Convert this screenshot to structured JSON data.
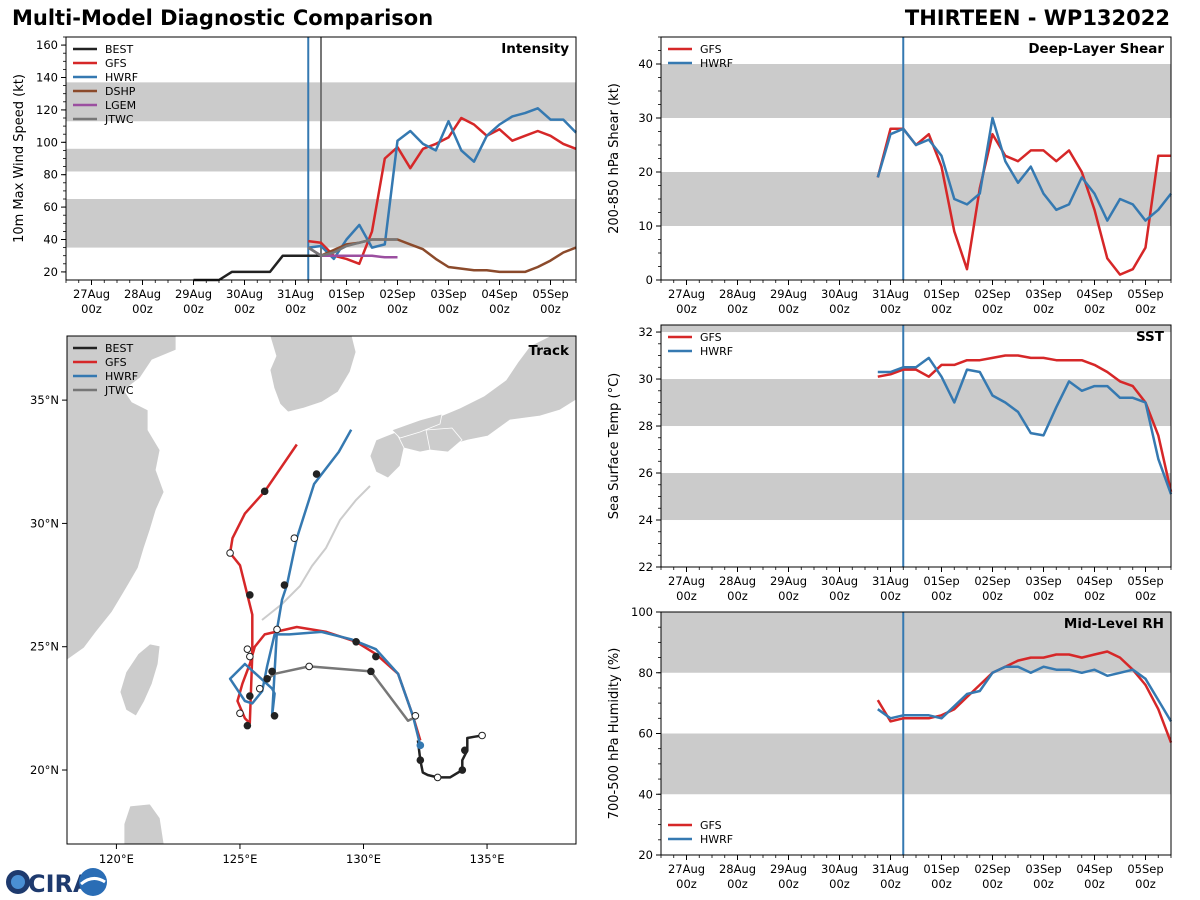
{
  "header": {
    "title_left": "Multi-Model Diagnostic Comparison",
    "title_right": "THIRTEEN - WP132022"
  },
  "logo_text": "CIRA",
  "colors": {
    "BEST": "#222222",
    "GFS": "#d62728",
    "HWRF": "#3579b1",
    "DSHP": "#8b4a2b",
    "LGEM": "#9b4fa0",
    "JTWC": "#777777",
    "band": "#cbcbcb",
    "land": "#cccccc",
    "marker": "#3579b1",
    "marker2": "#777777"
  },
  "time_ticks": [
    {
      "d": "27Aug",
      "z": "00z",
      "t": 0
    },
    {
      "d": "28Aug",
      "z": "00z",
      "t": 1
    },
    {
      "d": "29Aug",
      "z": "00z",
      "t": 2
    },
    {
      "d": "30Aug",
      "z": "00z",
      "t": 3
    },
    {
      "d": "31Aug",
      "z": "00z",
      "t": 4
    },
    {
      "d": "01Sep",
      "z": "00z",
      "t": 5
    },
    {
      "d": "02Sep",
      "z": "00z",
      "t": 6
    },
    {
      "d": "03Sep",
      "z": "00z",
      "t": 7
    },
    {
      "d": "04Sep",
      "z": "00z",
      "t": 8
    },
    {
      "d": "05Sep",
      "z": "00z",
      "t": 9
    }
  ],
  "time_range": [
    -0.5,
    9.5
  ],
  "chart_data": [
    {
      "id": "intensity",
      "type": "line",
      "title": "Intensity",
      "ylabel": "10m Max Wind Speed (kt)",
      "ylim": [
        15,
        165
      ],
      "yticks": [
        20,
        40,
        60,
        80,
        100,
        120,
        140,
        160
      ],
      "bands": [
        [
          35,
          65
        ],
        [
          82,
          96
        ],
        [
          113,
          137
        ]
      ],
      "vlines": [
        {
          "t": 4.25,
          "color": "HWRF"
        },
        {
          "t": 4.5,
          "color": "JTWC"
        }
      ],
      "legend": [
        "BEST",
        "GFS",
        "HWRF",
        "DSHP",
        "LGEM",
        "JTWC"
      ],
      "series": [
        {
          "name": "BEST",
          "x": [
            2,
            2.5,
            2.75,
            3,
            3.25,
            3.5,
            3.75,
            4,
            4.25,
            4.5
          ],
          "y": [
            15,
            15,
            20,
            20,
            20,
            20,
            30,
            30,
            30,
            30
          ]
        },
        {
          "name": "GFS",
          "x": [
            4.25,
            4.5,
            4.75,
            5,
            5.25,
            5.5,
            5.75,
            6,
            6.25,
            6.5,
            6.75,
            7,
            7.25,
            7.5,
            7.75,
            8,
            8.25,
            8.5,
            8.75,
            9,
            9.25,
            9.5
          ],
          "y": [
            39,
            38,
            30,
            28,
            25,
            45,
            90,
            97,
            84,
            96,
            99,
            103,
            115,
            111,
            104,
            108,
            101,
            104,
            107,
            104,
            99,
            96
          ]
        },
        {
          "name": "HWRF",
          "x": [
            4.25,
            4.5,
            4.75,
            5,
            5.25,
            5.5,
            5.75,
            6,
            6.25,
            6.5,
            6.75,
            7,
            7.25,
            7.5,
            7.75,
            8,
            8.25,
            8.5,
            8.75,
            9,
            9.25,
            9.5
          ],
          "y": [
            35,
            36,
            28,
            40,
            49,
            35,
            37,
            101,
            107,
            99,
            95,
            113,
            95,
            88,
            104,
            111,
            116,
            118,
            121,
            114,
            114,
            106
          ]
        },
        {
          "name": "DSHP",
          "x": [
            4.25,
            4.5,
            5,
            5.25,
            5.5,
            5.75,
            6,
            6.25,
            6.5,
            6.75,
            7,
            7.5,
            7.75,
            8,
            8.25,
            8.5,
            8.75,
            9,
            9.25,
            9.5
          ],
          "y": [
            35,
            30,
            37,
            38,
            40,
            40,
            40,
            37,
            34,
            28,
            23,
            21,
            21,
            20,
            20,
            20,
            23,
            27,
            32,
            35
          ],
          "x2": []
        },
        {
          "name": "LGEM",
          "x": [
            4.25,
            4.5,
            4.75,
            5,
            5.25,
            5.5,
            5.75,
            6
          ],
          "y": [
            35,
            30,
            30,
            30,
            30,
            30,
            29,
            29
          ]
        },
        {
          "name": "JTWC",
          "x": [
            4.25,
            4.5,
            4.75,
            5,
            5.25,
            5.5,
            5.75,
            6
          ],
          "y": [
            35,
            30,
            32,
            36,
            38,
            40,
            40,
            40
          ]
        }
      ]
    },
    {
      "id": "shear",
      "type": "line",
      "title": "Deep-Layer Shear",
      "ylabel": "200-850 hPa Shear (kt)",
      "ylim": [
        0,
        45
      ],
      "yticks": [
        0,
        10,
        20,
        30,
        40
      ],
      "bands": [
        [
          10,
          20
        ],
        [
          30,
          40
        ]
      ],
      "vlines": [
        {
          "t": 4.25,
          "color": "HWRF"
        }
      ],
      "legend": [
        "GFS",
        "HWRF"
      ],
      "series": [
        {
          "name": "GFS",
          "x": [
            3.75,
            4,
            4.25,
            4.5,
            4.75,
            5,
            5.25,
            5.5,
            5.75,
            6,
            6.25,
            6.5,
            6.75,
            7,
            7.25,
            7.5,
            7.75,
            8,
            8.25,
            8.5,
            8.75,
            9,
            9.25,
            9.5
          ],
          "y": [
            19,
            28,
            28,
            25,
            27,
            21,
            9,
            2,
            17,
            27,
            23,
            22,
            24,
            24,
            22,
            24,
            20,
            13,
            4,
            1,
            2,
            6,
            23,
            23
          ]
        },
        {
          "name": "HWRF",
          "x": [
            3.75,
            4,
            4.25,
            4.5,
            4.75,
            5,
            5.25,
            5.5,
            5.75,
            6,
            6.25,
            6.5,
            6.75,
            7,
            7.25,
            7.5,
            7.75,
            8,
            8.25,
            8.5,
            8.75,
            9,
            9.25,
            9.5
          ],
          "y": [
            19,
            27,
            28,
            25,
            26,
            23,
            15,
            14,
            16,
            30,
            22,
            18,
            21,
            16,
            13,
            14,
            19,
            16,
            11,
            15,
            14,
            11,
            13,
            16
          ]
        }
      ]
    },
    {
      "id": "sst",
      "type": "line",
      "title": "SST",
      "ylabel": "Sea Surface Temp (°C)",
      "ylim": [
        22,
        32.3
      ],
      "yticks": [
        22,
        24,
        26,
        28,
        30,
        32
      ],
      "bands": [
        [
          24,
          26
        ],
        [
          28,
          30
        ],
        [
          32,
          32.3
        ]
      ],
      "vlines": [
        {
          "t": 4.25,
          "color": "HWRF"
        }
      ],
      "legend": [
        "GFS",
        "HWRF"
      ],
      "series": [
        {
          "name": "GFS",
          "x": [
            3.75,
            4,
            4.25,
            4.5,
            4.75,
            5,
            5.25,
            5.5,
            5.75,
            6,
            6.25,
            6.5,
            6.75,
            7,
            7.25,
            7.5,
            7.75,
            8,
            8.25,
            8.5,
            8.75,
            9,
            9.25,
            9.5
          ],
          "y": [
            30.1,
            30.2,
            30.4,
            30.4,
            30.1,
            30.6,
            30.6,
            30.8,
            30.8,
            30.9,
            31.0,
            31.0,
            30.9,
            30.9,
            30.8,
            30.8,
            30.8,
            30.6,
            30.3,
            29.9,
            29.7,
            29.0,
            27.6,
            25.2
          ]
        },
        {
          "name": "HWRF",
          "x": [
            3.75,
            4,
            4.25,
            4.5,
            4.75,
            5,
            5.25,
            5.5,
            5.75,
            6,
            6.25,
            6.5,
            6.75,
            7,
            7.25,
            7.5,
            7.75,
            8,
            8.25,
            8.5,
            8.75,
            9,
            9.25,
            9.5
          ],
          "y": [
            30.3,
            30.3,
            30.5,
            30.5,
            30.9,
            30.1,
            29.0,
            30.4,
            30.3,
            29.3,
            29.0,
            28.6,
            27.7,
            27.6,
            28.8,
            29.9,
            29.5,
            29.7,
            29.7,
            29.2,
            29.2,
            29.0,
            26.6,
            25.1
          ]
        }
      ]
    },
    {
      "id": "rh",
      "type": "line",
      "title": "Mid-Level RH",
      "ylabel": "700-500 hPa Humidity (%)",
      "ylim": [
        20,
        100
      ],
      "yticks": [
        20,
        40,
        60,
        80,
        100
      ],
      "bands": [
        [
          40,
          60
        ],
        [
          80,
          100
        ]
      ],
      "vlines": [
        {
          "t": 4.25,
          "color": "HWRF"
        }
      ],
      "legend": [
        "GFS",
        "HWRF"
      ],
      "legend_pos": "bottom-left",
      "series": [
        {
          "name": "GFS",
          "x": [
            3.75,
            4,
            4.25,
            4.5,
            4.75,
            5,
            5.25,
            5.5,
            5.75,
            6,
            6.25,
            6.5,
            6.75,
            7,
            7.25,
            7.5,
            7.75,
            8,
            8.25,
            8.5,
            8.75,
            9,
            9.25,
            9.5
          ],
          "y": [
            71,
            64,
            65,
            65,
            65,
            66,
            68,
            72,
            76,
            80,
            82,
            84,
            85,
            85,
            86,
            86,
            85,
            86,
            87,
            85,
            81,
            76,
            68,
            57
          ]
        },
        {
          "name": "HWRF",
          "x": [
            3.75,
            4,
            4.25,
            4.5,
            4.75,
            5,
            5.25,
            5.5,
            5.75,
            6,
            6.25,
            6.5,
            6.75,
            7,
            7.25,
            7.5,
            7.75,
            8,
            8.25,
            8.5,
            8.75,
            9,
            9.25,
            9.5
          ],
          "y": [
            68,
            65,
            66,
            66,
            66,
            65,
            69,
            73,
            74,
            80,
            82,
            82,
            80,
            82,
            81,
            81,
            80,
            81,
            79,
            80,
            81,
            78,
            71,
            64
          ]
        }
      ]
    },
    {
      "id": "track",
      "type": "scatter",
      "title": "Track",
      "xlim": [
        118,
        138.6
      ],
      "ylim": [
        17,
        37.6
      ],
      "xticks": [
        {
          "v": 120,
          "label": "120°E"
        },
        {
          "v": 125,
          "label": "125°E"
        },
        {
          "v": 130,
          "label": "130°E"
        },
        {
          "v": 135,
          "label": "135°E"
        }
      ],
      "yticks": [
        {
          "v": 20,
          "label": "20°N"
        },
        {
          "v": 25,
          "label": "25°N"
        },
        {
          "v": 30,
          "label": "30°N"
        },
        {
          "v": 35,
          "label": "35°N"
        }
      ],
      "legend": [
        "BEST",
        "GFS",
        "HWRF",
        "JTWC"
      ],
      "series": [
        {
          "name": "BEST",
          "lon": [
            132.2,
            132.3,
            132.4,
            132.6,
            133.0,
            133.5,
            134.0,
            134.0,
            134.2,
            134.2,
            134.5,
            134.8
          ],
          "lat": [
            21.2,
            20.4,
            19.9,
            19.8,
            19.7,
            19.7,
            20.0,
            20.4,
            20.8,
            21.3,
            21.35,
            21.4
          ],
          "markers": [
            {
              "lon": 132.3,
              "lat": 20.4,
              "f": 1
            },
            {
              "lon": 133.0,
              "lat": 19.7,
              "f": 0
            },
            {
              "lon": 134.0,
              "lat": 20.0,
              "f": 1
            },
            {
              "lon": 134.1,
              "lat": 20.8,
              "f": 1
            },
            {
              "lon": 134.8,
              "lat": 21.4,
              "f": 0
            }
          ]
        },
        {
          "name": "GFS",
          "lon": [
            132.3,
            132.0,
            131.4,
            130.5,
            129.7,
            128.5,
            127.3,
            126.0,
            125.6,
            125.4,
            125.1,
            124.9,
            125.2,
            125.4,
            125.5,
            125.5,
            125.3,
            125.0,
            124.6,
            124.7,
            125.2,
            126.0,
            127.3
          ],
          "lat": [
            21.2,
            22.2,
            23.9,
            24.7,
            25.2,
            25.6,
            25.8,
            25.5,
            25.0,
            24.3,
            23.5,
            22.8,
            22.1,
            21.9,
            24.7,
            26.3,
            27.1,
            28.3,
            28.8,
            29.4,
            30.4,
            31.3,
            33.2
          ],
          "markers": [
            {
              "lon": 125.3,
              "lat": 21.8,
              "f": 1
            },
            {
              "lon": 125.0,
              "lat": 22.3,
              "f": 0
            },
            {
              "lon": 125.3,
              "lat": 24.9,
              "f": 0
            },
            {
              "lon": 125.4,
              "lat": 27.1,
              "f": 1
            },
            {
              "lon": 124.6,
              "lat": 28.8,
              "f": 0
            },
            {
              "lon": 126.0,
              "lat": 31.3,
              "f": 1
            },
            {
              "lon": 129.7,
              "lat": 25.2,
              "f": 1
            },
            {
              "lon": 130.5,
              "lat": 24.6,
              "f": 1
            }
          ]
        },
        {
          "name": "HWRF",
          "lon": [
            132.3,
            132.0,
            131.4,
            130.5,
            129.5,
            128.3,
            127.0,
            126.4,
            126.1,
            125.9,
            125.5,
            125.2,
            124.6,
            125.2,
            126.3,
            126.4,
            126.3,
            126.5,
            126.7,
            126.9,
            127.3,
            128.0,
            129.0,
            129.5
          ],
          "lat": [
            21.0,
            22.2,
            23.9,
            24.9,
            25.3,
            25.6,
            25.5,
            25.5,
            24.2,
            23.2,
            22.7,
            22.8,
            23.7,
            24.3,
            23.3,
            23.1,
            22.2,
            25.7,
            26.9,
            27.5,
            29.4,
            31.6,
            32.9,
            33.8
          ],
          "markers": [
            {
              "lon": 126.5,
              "lat": 25.7,
              "f": 0
            },
            {
              "lon": 125.4,
              "lat": 24.6,
              "f": 0
            },
            {
              "lon": 125.8,
              "lat": 23.3,
              "f": 0
            },
            {
              "lon": 125.4,
              "lat": 23.0,
              "f": 1
            },
            {
              "lon": 126.4,
              "lat": 22.2,
              "f": 1
            },
            {
              "lon": 126.8,
              "lat": 27.5,
              "f": 1
            },
            {
              "lon": 127.2,
              "lat": 29.4,
              "f": 0
            },
            {
              "lon": 128.1,
              "lat": 32.0,
              "f": 1
            }
          ]
        },
        {
          "name": "JTWC",
          "lon": [
            132.2,
            131.8,
            130.3,
            127.8,
            126.4,
            126.0
          ],
          "lat": [
            22.2,
            22.0,
            24.0,
            24.2,
            23.9,
            23.6
          ],
          "markers": [
            {
              "lon": 132.1,
              "lat": 22.2,
              "f": 0
            },
            {
              "lon": 130.3,
              "lat": 24.0,
              "f": 1
            },
            {
              "lon": 127.8,
              "lat": 24.2,
              "f": 0
            },
            {
              "lon": 126.3,
              "lat": 24.0,
              "f": 1
            },
            {
              "lon": 126.1,
              "lat": 23.7,
              "f": 1
            }
          ]
        }
      ]
    }
  ]
}
